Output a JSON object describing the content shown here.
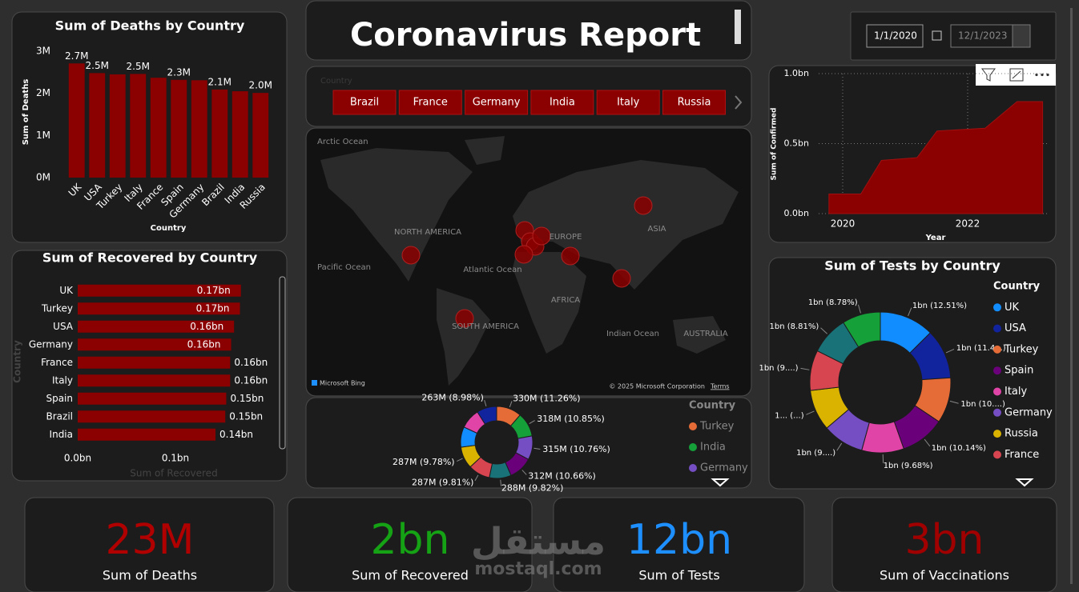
{
  "header": {
    "title": "Coronavirus Report"
  },
  "date_range": {
    "start": "1/1/2020",
    "end": "12/1/2023"
  },
  "slicer": {
    "label": "Country",
    "items": [
      "Brazil",
      "France",
      "Germany",
      "India",
      "Italy",
      "Russia"
    ]
  },
  "map": {
    "labels": [
      "Arctic Ocean",
      "NORTH AMERICA",
      "EUROPE",
      "ASIA",
      "Pacific Ocean",
      "Atlantic Ocean",
      "AFRICA",
      "SOUTH AMERICA",
      "Indian Ocean",
      "AUSTRALIA"
    ],
    "provider": "Microsoft Bing",
    "copyright": "© 2025 Microsoft Corporation",
    "terms": "Terms"
  },
  "chart_data": [
    {
      "type": "bar",
      "title": "Sum of Deaths by Country",
      "x_label": "Country",
      "y_label": "Sum of Deaths",
      "categories": [
        "UK",
        "USA",
        "Turkey",
        "Italy",
        "France",
        "Spain",
        "Germany",
        "Brazil",
        "India",
        "Russia"
      ],
      "values": [
        2.71,
        2.48,
        2.45,
        2.46,
        2.37,
        2.32,
        2.31,
        2.09,
        2.05,
        2.01
      ],
      "value_labels": [
        "2.7M",
        "2.5M",
        null,
        "2.5M",
        null,
        "2.3M",
        null,
        "2.1M",
        null,
        "2.0M"
      ],
      "color": "#8b0000",
      "ylim": [
        0,
        3
      ],
      "yticks": [
        {
          "value": 0,
          "label": "0M"
        },
        {
          "value": 1,
          "label": "1M"
        },
        {
          "value": 2,
          "label": "2M"
        },
        {
          "value": 3,
          "label": "3M"
        }
      ]
    },
    {
      "type": "hbar",
      "title": "Sum of Recovered by Country",
      "x_label": "Sum of Recovered",
      "y_label": "Country",
      "categories": [
        "UK",
        "Turkey",
        "USA",
        "Germany",
        "France",
        "Italy",
        "Spain",
        "Brazil",
        "India"
      ],
      "values": [
        0.167,
        0.166,
        0.16,
        0.157,
        0.156,
        0.156,
        0.152,
        0.151,
        0.141
      ],
      "value_labels": [
        "0.17bn",
        "0.17bn",
        "0.16bn",
        "0.16bn",
        "0.16bn",
        "0.16bn",
        "0.15bn",
        "0.15bn",
        "0.14bn"
      ],
      "color": "#8b0000",
      "xlim": [
        0,
        0.2
      ],
      "xticks": [
        {
          "value": 0,
          "label": "0.0bn"
        },
        {
          "value": 0.1,
          "label": "0.1bn"
        }
      ]
    },
    {
      "type": "area",
      "x_label": "Year",
      "y_label": "Sum of Confirmed",
      "x": [
        2019.78,
        2020.29,
        2020.62,
        2021.19,
        2021.51,
        2022.28,
        2022.79,
        2023.2
      ],
      "values": [
        0.14,
        0.14,
        0.38,
        0.4,
        0.59,
        0.61,
        0.8,
        0.8
      ],
      "color": "#8b0000",
      "xlim": [
        2019.7,
        2023.3
      ],
      "xticks": [
        2020,
        2022
      ],
      "ylim": [
        0,
        1
      ],
      "yticks": [
        {
          "value": 0,
          "label": "0.0bn"
        },
        {
          "value": 0.5,
          "label": "0.5bn"
        },
        {
          "value": 1,
          "label": "1.0bn"
        }
      ],
      "grid": true
    },
    {
      "type": "donut",
      "legend_title": "Country",
      "categories": [
        "Turkey",
        "India",
        "Germany",
        null,
        null,
        null,
        null,
        null,
        null,
        null
      ],
      "values": [
        330,
        318,
        315,
        312,
        288,
        287,
        287,
        268,
        265,
        263
      ],
      "value_labels": [
        "330M (11.26%)",
        "318M (10.85%)",
        "315M (10.76%)",
        "312M (10.66%)",
        "288M (9.82%)",
        "287M (9.81%)",
        "287M (9.78%)",
        null,
        null,
        "263M (8.98%)"
      ],
      "colors": [
        "#e66c37",
        "#15a03a",
        "#744ec2",
        "#6b007b",
        "#197278",
        "#d64550",
        "#d9b300",
        "#118dff",
        "#e044a7",
        "#12239e"
      ]
    },
    {
      "type": "donut",
      "title": "Sum of Tests by Country",
      "legend_title": "Country",
      "categories": [
        "UK",
        "USA",
        "Turkey",
        "Spain",
        "Italy",
        "Germany",
        "Russia",
        "France",
        null,
        null
      ],
      "values": [
        1.44,
        1.31,
        1.2,
        1.17,
        1.11,
        1.09,
        1.08,
        1.06,
        1.01,
        1.01
      ],
      "value_labels": [
        "1bn (12.51%)",
        "1bn (11.4...)",
        "1bn (10....)",
        "1bn (10.14%)",
        "1bn (9.68%)",
        "1bn (9....)",
        "1... (...)",
        "1bn (9....)",
        "1bn (8.81%)",
        "1bn (8.78%)"
      ],
      "colors": [
        "#118dff",
        "#12239e",
        "#e66c37",
        "#6b007b",
        "#e044a7",
        "#744ec2",
        "#d9b300",
        "#d64550",
        "#197278",
        "#15a03a"
      ]
    }
  ],
  "kpis": [
    {
      "value": "23M",
      "label": "Sum of Deaths",
      "color": "#b00000"
    },
    {
      "value": "2bn",
      "label": "Sum of Recovered",
      "color": "#15a315"
    },
    {
      "value": "12bn",
      "label": "Sum of Tests",
      "color": "#1e8fff"
    },
    {
      "value": "3bn",
      "label": "Sum of Vaccinations",
      "color": "#a00000"
    }
  ],
  "watermark": {
    "arabic": "مستقل",
    "latin": "mostaql.com"
  }
}
